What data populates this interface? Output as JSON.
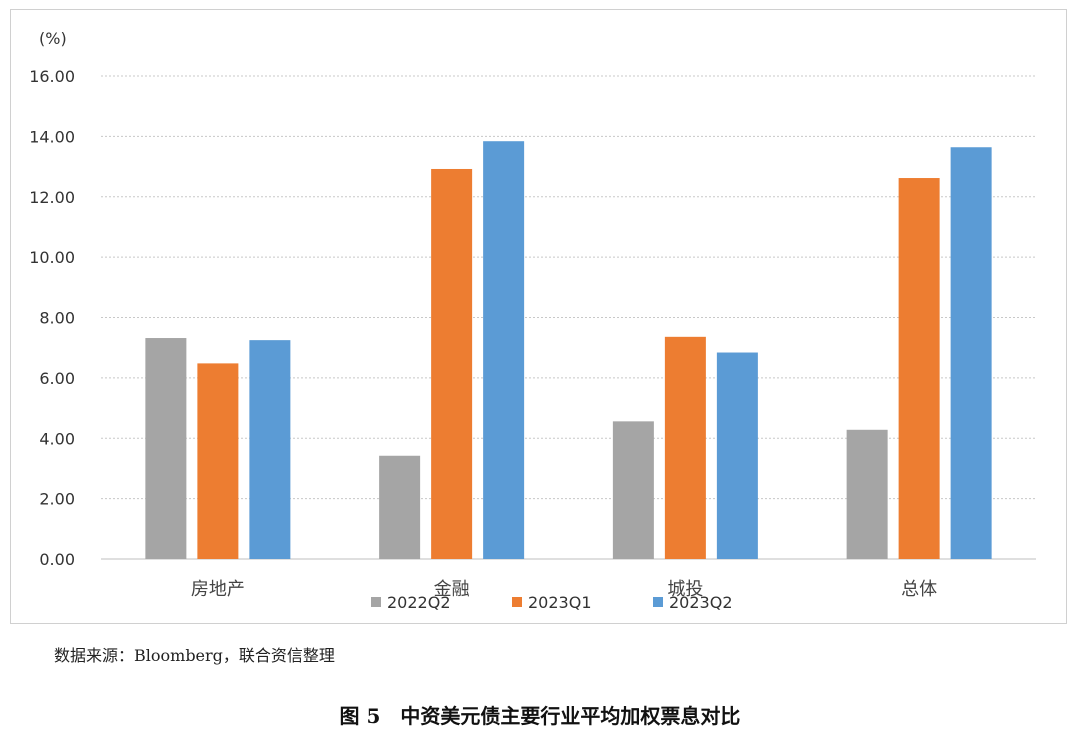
{
  "chart_data": {
    "type": "bar",
    "title": "",
    "xlabel": "",
    "ylabel": "(%)",
    "ylim": [
      0,
      16
    ],
    "yticks": [
      "0.00",
      "2.00",
      "4.00",
      "6.00",
      "8.00",
      "10.00",
      "12.00",
      "14.00",
      "16.00"
    ],
    "grid": true,
    "legend_position": "bottom",
    "categories": [
      "房地产",
      "金融",
      "城投",
      "总体"
    ],
    "series": [
      {
        "name": "2022Q2",
        "color": "#a5a5a5",
        "values": [
          7.32,
          3.42,
          4.56,
          4.28
        ]
      },
      {
        "name": "2023Q1",
        "color": "#ed7d31",
        "values": [
          6.48,
          12.92,
          7.36,
          12.62
        ]
      },
      {
        "name": "2023Q2",
        "color": "#5b9bd5",
        "values": [
          7.25,
          13.84,
          6.84,
          13.64
        ]
      }
    ]
  },
  "source_note": "数据来源：Bloomberg，联合资信整理",
  "caption": "图 5　中资美元债主要行业平均加权票息对比"
}
